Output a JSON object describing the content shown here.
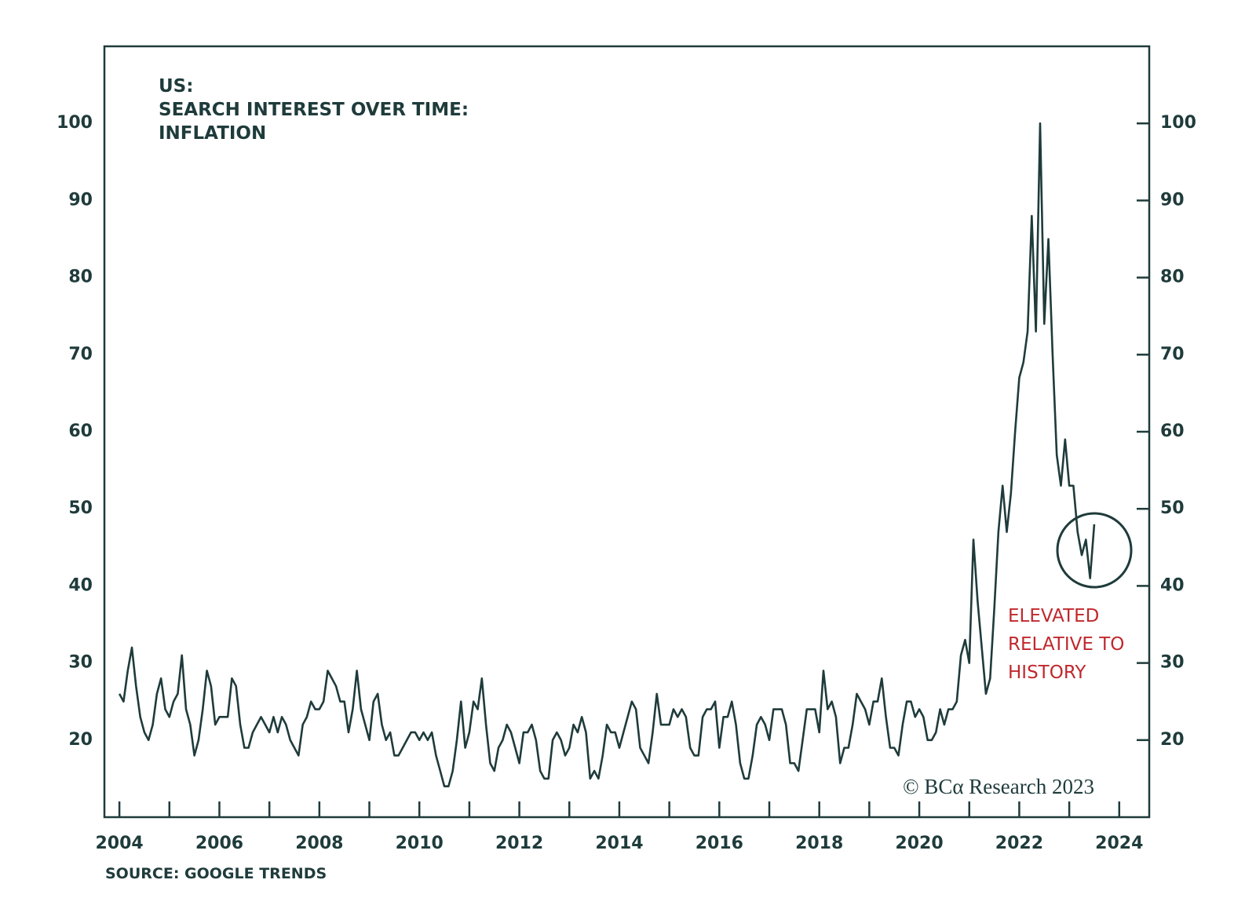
{
  "chart_data": {
    "type": "line",
    "title": [
      "US:",
      "SEARCH INTEREST OVER TIME:",
      "INFLATION"
    ],
    "source": "SOURCE: GOOGLE TRENDS",
    "copyright": "© BCα Research 2023",
    "annotation": [
      "ELEVATED",
      "RELATIVE TO",
      "HISTORY"
    ],
    "color": "#1f3b3b",
    "annotation_color": "#c0282d",
    "xlim": [
      2003.7,
      2024.6
    ],
    "xticks": [
      2004,
      2006,
      2008,
      2010,
      2012,
      2014,
      2016,
      2018,
      2020,
      2022,
      2024
    ],
    "xminorticks": [
      2005,
      2007,
      2009,
      2011,
      2013,
      2015,
      2017,
      2019,
      2021,
      2023
    ],
    "ylim": [
      10,
      110
    ],
    "yticks": [
      20,
      30,
      40,
      50,
      60,
      70,
      80,
      90,
      100
    ],
    "y2lim": [
      10,
      110
    ],
    "y2ticks": [
      20,
      30,
      40,
      50,
      60,
      70,
      80,
      90,
      100
    ],
    "x": [
      2004,
      2004.083,
      2004.167,
      2004.25,
      2004.333,
      2004.417,
      2004.5,
      2004.583,
      2004.667,
      2004.75,
      2004.833,
      2004.917,
      2005,
      2005.083,
      2005.167,
      2005.25,
      2005.333,
      2005.417,
      2005.5,
      2005.583,
      2005.667,
      2005.75,
      2005.833,
      2005.917,
      2006,
      2006.083,
      2006.167,
      2006.25,
      2006.333,
      2006.417,
      2006.5,
      2006.583,
      2006.667,
      2006.75,
      2006.833,
      2006.917,
      2007,
      2007.083,
      2007.167,
      2007.25,
      2007.333,
      2007.417,
      2007.5,
      2007.583,
      2007.667,
      2007.75,
      2007.833,
      2007.917,
      2008,
      2008.083,
      2008.167,
      2008.25,
      2008.333,
      2008.417,
      2008.5,
      2008.583,
      2008.667,
      2008.75,
      2008.833,
      2008.917,
      2009,
      2009.083,
      2009.167,
      2009.25,
      2009.333,
      2009.417,
      2009.5,
      2009.583,
      2009.667,
      2009.75,
      2009.833,
      2009.917,
      2010,
      2010.083,
      2010.167,
      2010.25,
      2010.333,
      2010.417,
      2010.5,
      2010.583,
      2010.667,
      2010.75,
      2010.833,
      2010.917,
      2011,
      2011.083,
      2011.167,
      2011.25,
      2011.333,
      2011.417,
      2011.5,
      2011.583,
      2011.667,
      2011.75,
      2011.833,
      2011.917,
      2012,
      2012.083,
      2012.167,
      2012.25,
      2012.333,
      2012.417,
      2012.5,
      2012.583,
      2012.667,
      2012.75,
      2012.833,
      2012.917,
      2013,
      2013.083,
      2013.167,
      2013.25,
      2013.333,
      2013.417,
      2013.5,
      2013.583,
      2013.667,
      2013.75,
      2013.833,
      2013.917,
      2014,
      2014.083,
      2014.167,
      2014.25,
      2014.333,
      2014.417,
      2014.5,
      2014.583,
      2014.667,
      2014.75,
      2014.833,
      2014.917,
      2015,
      2015.083,
      2015.167,
      2015.25,
      2015.333,
      2015.417,
      2015.5,
      2015.583,
      2015.667,
      2015.75,
      2015.833,
      2015.917,
      2016,
      2016.083,
      2016.167,
      2016.25,
      2016.333,
      2016.417,
      2016.5,
      2016.583,
      2016.667,
      2016.75,
      2016.833,
      2016.917,
      2017,
      2017.083,
      2017.167,
      2017.25,
      2017.333,
      2017.417,
      2017.5,
      2017.583,
      2017.667,
      2017.75,
      2017.833,
      2017.917,
      2018,
      2018.083,
      2018.167,
      2018.25,
      2018.333,
      2018.417,
      2018.5,
      2018.583,
      2018.667,
      2018.75,
      2018.833,
      2018.917,
      2019,
      2019.083,
      2019.167,
      2019.25,
      2019.333,
      2019.417,
      2019.5,
      2019.583,
      2019.667,
      2019.75,
      2019.833,
      2019.917,
      2020,
      2020.083,
      2020.167,
      2020.25,
      2020.333,
      2020.417,
      2020.5,
      2020.583,
      2020.667,
      2020.75,
      2020.833,
      2020.917,
      2021,
      2021.083,
      2021.167,
      2021.25,
      2021.333,
      2021.417,
      2021.5,
      2021.583,
      2021.667,
      2021.75,
      2021.833,
      2021.917,
      2022,
      2022.083,
      2022.167,
      2022.25,
      2022.333,
      2022.417,
      2022.5,
      2022.583,
      2022.667,
      2022.75,
      2022.833,
      2022.917,
      2023,
      2023.083,
      2023.167,
      2023.25,
      2023.333,
      2023.417,
      2023.5
    ],
    "values": [
      26,
      25,
      29,
      32,
      27,
      23,
      21,
      20,
      22,
      26,
      28,
      24,
      23,
      25,
      26,
      31,
      24,
      22,
      18,
      20,
      24,
      29,
      27,
      22,
      23,
      23,
      23,
      28,
      27,
      22,
      19,
      19,
      21,
      22,
      23,
      22,
      21,
      23,
      21,
      23,
      22,
      20,
      19,
      18,
      22,
      23,
      25,
      24,
      24,
      25,
      29,
      28,
      27,
      25,
      25,
      21,
      24,
      29,
      24,
      22,
      20,
      25,
      26,
      22,
      20,
      21,
      18,
      18,
      19,
      20,
      21,
      21,
      20,
      21,
      20,
      21,
      18,
      16,
      14,
      14,
      16,
      20,
      25,
      19,
      21,
      25,
      24,
      28,
      22,
      17,
      16,
      19,
      20,
      22,
      21,
      19,
      17,
      21,
      21,
      22,
      20,
      16,
      15,
      15,
      20,
      21,
      20,
      18,
      19,
      22,
      21,
      23,
      21,
      15,
      16,
      15,
      18,
      22,
      21,
      21,
      19,
      21,
      23,
      25,
      24,
      19,
      18,
      17,
      21,
      26,
      22,
      22,
      22,
      24,
      23,
      24,
      23,
      19,
      18,
      18,
      23,
      24,
      24,
      25,
      19,
      23,
      23,
      25,
      22,
      17,
      15,
      15,
      18,
      22,
      23,
      22,
      20,
      24,
      24,
      24,
      22,
      17,
      17,
      16,
      20,
      24,
      24,
      24,
      21,
      29,
      24,
      25,
      23,
      17,
      19,
      19,
      22,
      26,
      25,
      24,
      22,
      25,
      25,
      28,
      23,
      19,
      19,
      18,
      22,
      25,
      25,
      23,
      24,
      23,
      20,
      20,
      21,
      24,
      22,
      24,
      24,
      25,
      31,
      33,
      30,
      46,
      38,
      32,
      26,
      28,
      37,
      47,
      53,
      47,
      52,
      60,
      67,
      69,
      73,
      88,
      73,
      100,
      74,
      85,
      70,
      57,
      53,
      59,
      53,
      53,
      47,
      44,
      46,
      41,
      48
    ]
  }
}
